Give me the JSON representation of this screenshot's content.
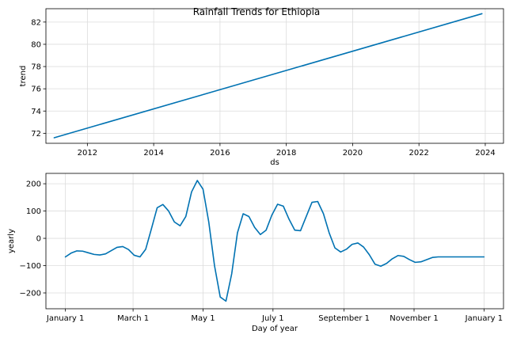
{
  "title": "Rainfall Trends for Ethiopia",
  "chart_data": [
    {
      "type": "line",
      "name": "trend-panel",
      "xlabel": "ds",
      "ylabel": "trend",
      "xlim": [
        2010.75,
        2024.55
      ],
      "ylim": [
        71.1,
        83.2
      ],
      "xticks": [
        2012,
        2014,
        2016,
        2018,
        2020,
        2022,
        2024
      ],
      "xtick_labels": [
        "2012",
        "2014",
        "2016",
        "2018",
        "2020",
        "2022",
        "2024"
      ],
      "yticks": [
        72,
        74,
        76,
        78,
        80,
        82
      ],
      "ytick_labels": [
        "72",
        "74",
        "76",
        "78",
        "80",
        "82"
      ],
      "grid": true,
      "color": "#0072B2",
      "x": [
        2011.0,
        2023.9
      ],
      "y": [
        71.6,
        82.75
      ]
    },
    {
      "type": "line",
      "name": "yearly-panel",
      "xlabel": "Day of year",
      "ylabel": "yearly",
      "xlim": [
        -17,
        382
      ],
      "ylim": [
        -258,
        238
      ],
      "xticks": [
        0,
        59,
        120,
        181,
        243,
        304,
        365
      ],
      "xtick_labels": [
        "January 1",
        "March 1",
        "May 1",
        "July 1",
        "September 1",
        "November 1",
        "January 1"
      ],
      "yticks": [
        -200,
        -100,
        0,
        100,
        200
      ],
      "ytick_labels": [
        "−200",
        "−100",
        "0",
        "100",
        "200"
      ],
      "grid": true,
      "color": "#0072B2",
      "x": [
        0,
        5,
        10,
        15,
        20,
        25,
        30,
        35,
        40,
        45,
        50,
        55,
        60,
        65,
        70,
        75,
        80,
        85,
        90,
        95,
        100,
        105,
        110,
        115,
        120,
        125,
        130,
        135,
        140,
        145,
        150,
        155,
        160,
        165,
        170,
        175,
        180,
        185,
        190,
        195,
        200,
        205,
        210,
        215,
        220,
        225,
        230,
        235,
        240,
        245,
        250,
        255,
        260,
        265,
        270,
        275,
        280,
        285,
        290,
        295,
        300,
        305,
        310,
        315,
        320,
        325,
        330,
        335,
        340,
        345,
        350,
        355,
        360,
        365
      ],
      "y": [
        -68,
        -54,
        -46,
        -47,
        -53,
        -59,
        -61,
        -57,
        -45,
        -33,
        -30,
        -41,
        -62,
        -68,
        -40,
        35,
        112,
        124,
        100,
        60,
        46,
        80,
        170,
        212,
        180,
        60,
        -100,
        -215,
        -230,
        -130,
        20,
        90,
        80,
        40,
        14,
        30,
        85,
        125,
        118,
        70,
        30,
        28,
        80,
        132,
        135,
        90,
        20,
        -35,
        -50,
        -40,
        -22,
        -17,
        -32,
        -60,
        -95,
        -102,
        -92,
        -75,
        -63,
        -66,
        -78,
        -88,
        -86,
        -78,
        -70,
        -68,
        -68,
        -68,
        -68,
        -68,
        -68,
        -68,
        -68,
        -68
      ]
    }
  ]
}
